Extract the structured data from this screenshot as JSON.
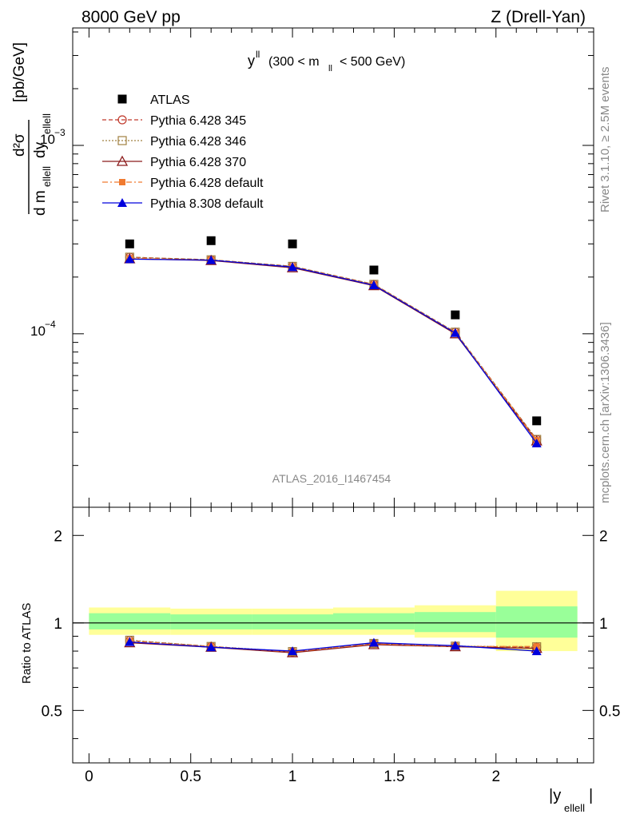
{
  "header": {
    "left": "8000 GeV pp",
    "right": "Z (Drell-Yan)",
    "plot_label_main": "y",
    "plot_label_sup": "ll",
    "plot_label_range_a": "(300 < m",
    "plot_label_range_sub": "ll",
    "plot_label_range_b": "< 500 GeV)",
    "watermark": "ATLAS_2016_I1467454",
    "side_top": "Rivet 3.1.10, ≥ 2.5M events",
    "side_bottom": "mcplots.cern.ch [arXiv:1306.3436]"
  },
  "axes": {
    "ylabel_frac_num": "d²σ",
    "ylabel_frac_den_a": "d m",
    "ylabel_frac_den_sub1": "ellell",
    "ylabel_frac_den_b": " dy",
    "ylabel_frac_den_sub2": "ellell",
    "ylabel_unit": "[pb/GeV]",
    "ratio_ylabel": "Ratio to ATLAS",
    "xlabel_main": "|y",
    "xlabel_sub": "ellell",
    "xlabel_end": "|",
    "main_ytick_minus3": "10",
    "main_ytick_minus3_exp": "−3",
    "main_ytick_minus4": "10",
    "main_ytick_minus4_exp": "−4",
    "ratio_ticks": [
      "0.5",
      "1",
      "2"
    ],
    "x_ticks": [
      "0",
      "0.5",
      "1",
      "1.5",
      "2"
    ]
  },
  "legend": [
    {
      "label": "ATLAS",
      "color": "#000000"
    },
    {
      "label": "Pythia 6.428 345",
      "color": "#c0392b"
    },
    {
      "label": "Pythia 6.428 346",
      "color": "#a08040"
    },
    {
      "label": "Pythia 6.428 370",
      "color": "#8b1a1a"
    },
    {
      "label": "Pythia 6.428 default",
      "color": "#f07a30"
    },
    {
      "label": "Pythia 8.308 default",
      "color": "#0000dd"
    }
  ],
  "chart_data": {
    "type": "line",
    "x": [
      0.2,
      0.6,
      1.0,
      1.4,
      1.8,
      2.2
    ],
    "x_edges": [
      0.0,
      0.4,
      0.8,
      1.2,
      1.6,
      2.0,
      2.4
    ],
    "xlim": [
      -0.08,
      2.48
    ],
    "ylim": [
      1.2e-05,
      0.0042
    ],
    "yscale": "log",
    "ratio_ylim": [
      0.33,
      2.5
    ],
    "ratio_yscale": "log",
    "data": {
      "name": "ATLAS",
      "values": [
        0.0003,
        0.000312,
        0.0003,
        0.000218,
        0.000126,
        3.45e-05
      ]
    },
    "series": [
      {
        "name": "Pythia 6.428 345",
        "values": [
          0.000255,
          0.000247,
          0.000228,
          0.000183,
          0.000102,
          2.75e-05
        ],
        "ratio": [
          0.87,
          0.83,
          0.795,
          0.85,
          0.83,
          0.825
        ]
      },
      {
        "name": "Pythia 6.428 346",
        "values": [
          0.000255,
          0.000247,
          0.000228,
          0.000183,
          0.000102,
          2.75e-05
        ],
        "ratio": [
          0.872,
          0.83,
          0.797,
          0.85,
          0.832,
          0.828
        ]
      },
      {
        "name": "Pythia 6.428 370",
        "values": [
          0.00025,
          0.000245,
          0.000224,
          0.00018,
          0.0001,
          2.7e-05
        ],
        "ratio": [
          0.855,
          0.825,
          0.79,
          0.842,
          0.828,
          0.818
        ]
      },
      {
        "name": "Pythia 6.428 default",
        "values": [
          0.000252,
          0.000246,
          0.000226,
          0.000182,
          0.000101,
          2.72e-05
        ],
        "ratio": [
          0.865,
          0.828,
          0.795,
          0.848,
          0.83,
          0.83
        ]
      },
      {
        "name": "Pythia 8.308 default",
        "values": [
          0.000249,
          0.000246,
          0.000226,
          0.000181,
          0.000101,
          2.62e-05
        ],
        "ratio": [
          0.86,
          0.825,
          0.8,
          0.855,
          0.835,
          0.8
        ]
      }
    ],
    "uncertainty_bands": {
      "inner": [
        [
          0.95,
          1.08
        ],
        [
          0.95,
          1.07
        ],
        [
          0.95,
          1.07
        ],
        [
          0.95,
          1.08
        ],
        [
          0.93,
          1.09
        ],
        [
          0.89,
          1.14
        ]
      ],
      "outer": [
        [
          0.91,
          1.13
        ],
        [
          0.91,
          1.12
        ],
        [
          0.91,
          1.12
        ],
        [
          0.91,
          1.13
        ],
        [
          0.89,
          1.15
        ],
        [
          0.8,
          1.29
        ]
      ]
    }
  }
}
